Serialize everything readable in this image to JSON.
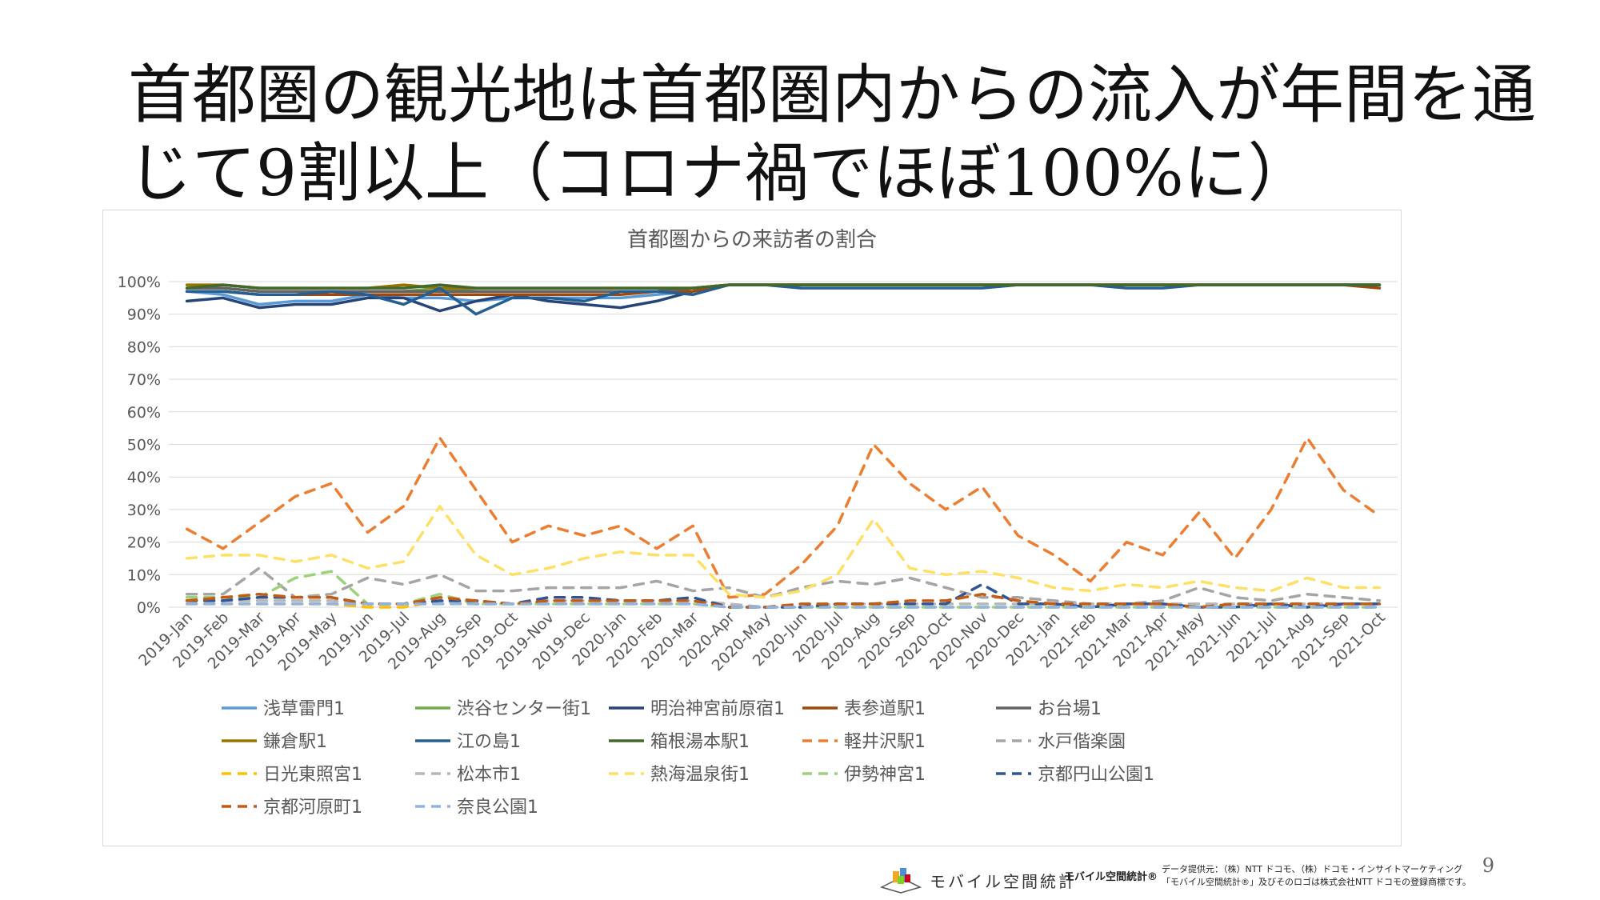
{
  "slide": {
    "title_line1": "首都圏の観光地は首都圏内からの流入が年間を通",
    "title_line2": "じて9割以上（コロナ禍でほぼ100%に）",
    "page_number": "9"
  },
  "footer": {
    "logo_text": "モバイル空間統計",
    "brand": "モバイル空間統計®",
    "credit_line1": "データ提供元：（株）NTT ドコモ、（株）ドコモ・インサイトマーケティング",
    "credit_line2": "「モバイル空間統計®」及びそのロゴは株式会社NTT ドコモの登録商標です。"
  },
  "chart_data": {
    "type": "line",
    "title": "首都圏からの来訪者の割合",
    "xlabel": "",
    "ylabel": "",
    "ylim": [
      0,
      100
    ],
    "yticks": [
      "0%",
      "10%",
      "20%",
      "30%",
      "40%",
      "50%",
      "60%",
      "70%",
      "80%",
      "90%",
      "100%"
    ],
    "grid": true,
    "legend_position": "bottom",
    "categories": [
      "2019-Jan",
      "2019-Feb",
      "2019-Mar",
      "2019-Apr",
      "2019-May",
      "2019-Jun",
      "2019-Jul",
      "2019-Aug",
      "2019-Sep",
      "2019-Oct",
      "2019-Nov",
      "2019-Dec",
      "2020-Jan",
      "2020-Feb",
      "2020-Mar",
      "2020-Apr",
      "2020-May",
      "2020-Jun",
      "2020-Jul",
      "2020-Aug",
      "2020-Sep",
      "2020-Oct",
      "2020-Nov",
      "2020-Dec",
      "2021-Jan",
      "2021-Feb",
      "2021-Mar",
      "2021-Apr",
      "2021-May",
      "2021-Jun",
      "2021-Jul",
      "2021-Aug",
      "2021-Sep",
      "2021-Oct"
    ],
    "series": [
      {
        "name": "浅草雷門1",
        "color": "#5b9bd5",
        "dash": false,
        "values": [
          97,
          96,
          93,
          94,
          94,
          96,
          95,
          95,
          94,
          95,
          95,
          95,
          95,
          96,
          97,
          99,
          99,
          99,
          99,
          99,
          99,
          99,
          99,
          99,
          99,
          99,
          99,
          99,
          99,
          99,
          99,
          99,
          99,
          99
        ]
      },
      {
        "name": "渋谷センター街1",
        "color": "#70ad47",
        "dash": false,
        "values": [
          98,
          98,
          97,
          97,
          97,
          97,
          97,
          98,
          97,
          97,
          97,
          97,
          97,
          97,
          98,
          99,
          99,
          99,
          99,
          99,
          99,
          99,
          99,
          99,
          99,
          99,
          99,
          99,
          99,
          99,
          99,
          99,
          99,
          99
        ]
      },
      {
        "name": "明治神宮前原宿1",
        "color": "#264478",
        "dash": false,
        "values": [
          94,
          95,
          92,
          93,
          93,
          95,
          95,
          91,
          94,
          96,
          94,
          93,
          92,
          94,
          97,
          99,
          99,
          99,
          99,
          99,
          99,
          99,
          99,
          99,
          99,
          99,
          99,
          99,
          99,
          99,
          99,
          99,
          99,
          99
        ]
      },
      {
        "name": "表参道駅1",
        "color": "#9e480e",
        "dash": false,
        "values": [
          97,
          97,
          96,
          96,
          96,
          96,
          96,
          96,
          96,
          96,
          96,
          96,
          96,
          97,
          97,
          99,
          99,
          99,
          99,
          99,
          99,
          99,
          99,
          99,
          99,
          99,
          99,
          99,
          99,
          99,
          99,
          99,
          99,
          98
        ]
      },
      {
        "name": "お台場1",
        "color": "#636363",
        "dash": false,
        "values": [
          98,
          98,
          97,
          97,
          97,
          97,
          97,
          97,
          97,
          97,
          97,
          97,
          97,
          97,
          98,
          99,
          99,
          99,
          99,
          99,
          99,
          99,
          99,
          99,
          99,
          99,
          99,
          99,
          99,
          99,
          99,
          99,
          99,
          99
        ]
      },
      {
        "name": "鎌倉駅1",
        "color": "#997300",
        "dash": false,
        "values": [
          99,
          99,
          98,
          98,
          98,
          98,
          99,
          98,
          98,
          98,
          98,
          98,
          98,
          98,
          98,
          99,
          99,
          99,
          99,
          99,
          99,
          99,
          99,
          99,
          99,
          99,
          99,
          99,
          99,
          99,
          99,
          99,
          99,
          99
        ]
      },
      {
        "name": "江の島1",
        "color": "#255e91",
        "dash": false,
        "values": [
          97,
          97,
          96,
          96,
          97,
          96,
          93,
          98,
          90,
          95,
          95,
          94,
          97,
          97,
          96,
          99,
          99,
          98,
          98,
          98,
          98,
          98,
          98,
          99,
          99,
          99,
          98,
          98,
          99,
          99,
          99,
          99,
          99,
          99
        ]
      },
      {
        "name": "箱根湯本駅1",
        "color": "#43682b",
        "dash": false,
        "values": [
          98,
          99,
          98,
          98,
          98,
          98,
          98,
          99,
          98,
          98,
          98,
          98,
          98,
          98,
          98,
          99,
          99,
          99,
          99,
          99,
          99,
          99,
          99,
          99,
          99,
          99,
          99,
          99,
          99,
          99,
          99,
          99,
          99,
          99
        ]
      },
      {
        "name": "軽井沢駅1",
        "color": "#f4b183",
        "color_line": "#ed7d31",
        "dash": true,
        "values": [
          24,
          18,
          26,
          34,
          38,
          23,
          31,
          52,
          36,
          20,
          25,
          22,
          25,
          18,
          25,
          3,
          4,
          13,
          25,
          50,
          38,
          30,
          37,
          22,
          16,
          8,
          20,
          16,
          29,
          15,
          30,
          52,
          36,
          28
        ]
      },
      {
        "name": "水戸偕楽園",
        "color": "#a5a5a5",
        "dash": true,
        "values": [
          4,
          4,
          12,
          3,
          4,
          9,
          7,
          10,
          5,
          5,
          6,
          6,
          6,
          8,
          5,
          6,
          3,
          6,
          8,
          7,
          9,
          6,
          3,
          3,
          2,
          1,
          1,
          2,
          6,
          3,
          2,
          4,
          3,
          2
        ]
      },
      {
        "name": "日光東照宮1",
        "color": "#ffc000",
        "dash": true,
        "values": [
          1,
          1,
          1,
          1,
          1,
          0,
          0,
          2,
          1,
          1,
          1,
          1,
          1,
          1,
          1,
          0,
          0,
          0,
          0,
          0,
          0,
          0,
          0,
          0,
          0,
          0,
          0,
          0,
          0,
          0,
          0,
          0,
          0,
          0
        ]
      },
      {
        "name": "松本市1",
        "color": "#b7b7b7",
        "dash": true,
        "values": [
          2,
          2,
          2,
          2,
          2,
          1,
          1,
          2,
          1,
          1,
          2,
          2,
          2,
          2,
          2,
          1,
          0,
          0,
          1,
          1,
          1,
          1,
          1,
          1,
          1,
          1,
          1,
          1,
          1,
          1,
          1,
          1,
          1,
          1
        ]
      },
      {
        "name": "熱海温泉街1",
        "color": "#ffe066",
        "dash": true,
        "values": [
          15,
          16,
          16,
          14,
          16,
          12,
          14,
          31,
          16,
          10,
          12,
          15,
          17,
          16,
          16,
          4,
          3,
          5,
          10,
          27,
          12,
          10,
          11,
          9,
          6,
          5,
          7,
          6,
          8,
          6,
          5,
          9,
          6,
          6
        ]
      },
      {
        "name": "伊勢神宮1",
        "color": "#9bd27a",
        "dash": true,
        "values": [
          3,
          3,
          3,
          9,
          11,
          1,
          1,
          4,
          1,
          1,
          1,
          1,
          1,
          1,
          1,
          0,
          0,
          0,
          0,
          0,
          0,
          0,
          0,
          0,
          0,
          0,
          0,
          0,
          0,
          0,
          0,
          0,
          0,
          0
        ]
      },
      {
        "name": "京都円山公園1",
        "color": "#2f5597",
        "dash": true,
        "values": [
          2,
          2,
          3,
          3,
          3,
          1,
          1,
          2,
          2,
          1,
          3,
          3,
          2,
          2,
          3,
          0,
          0,
          0,
          1,
          1,
          1,
          1,
          7,
          1,
          1,
          0,
          1,
          1,
          0,
          0,
          1,
          0,
          1,
          1
        ]
      },
      {
        "name": "京都河原町1",
        "color": "#c55a11",
        "dash": true,
        "values": [
          2,
          3,
          4,
          3,
          3,
          1,
          1,
          3,
          2,
          1,
          2,
          2,
          2,
          2,
          2,
          0,
          0,
          1,
          1,
          1,
          2,
          2,
          4,
          2,
          1,
          1,
          1,
          1,
          0,
          1,
          1,
          1,
          1,
          1
        ]
      },
      {
        "name": "奈良公園1",
        "color": "#8fb4e3",
        "dash": true,
        "values": [
          1,
          1,
          1,
          1,
          1,
          1,
          1,
          1,
          1,
          1,
          1,
          1,
          1,
          1,
          1,
          0,
          0,
          0,
          0,
          0,
          0,
          0,
          0,
          0,
          0,
          0,
          0,
          0,
          0,
          0,
          0,
          0,
          0,
          0
        ]
      }
    ]
  }
}
